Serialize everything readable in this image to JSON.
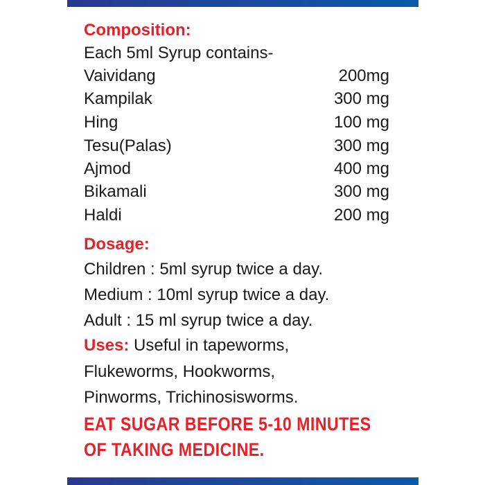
{
  "composition": {
    "heading": "Composition:",
    "intro": "Each 5ml Syrup contains-",
    "ingredients": [
      {
        "name": "Vaividang",
        "amount": "200mg"
      },
      {
        "name": "Kampilak",
        "amount": "300 mg"
      },
      {
        "name": "Hing",
        "amount": "100 mg"
      },
      {
        "name": "Tesu(Palas)",
        "amount": "300 mg"
      },
      {
        "name": "Ajmod",
        "amount": "400 mg"
      },
      {
        "name": "Bikamali",
        "amount": "300 mg"
      },
      {
        "name": "Haldi",
        "amount": "200 mg"
      }
    ]
  },
  "dosage": {
    "heading": "Dosage:",
    "lines": [
      "Children : 5ml syrup twice a day.",
      "Medium : 10ml syrup twice a day.",
      "Adult : 15 ml syrup twice a day."
    ]
  },
  "uses": {
    "heading": "Uses:",
    "lines": [
      "Useful in tapeworms,",
      "Flukeworms, Hookworms,",
      "Pinworms, Trichinosisworms."
    ]
  },
  "warning": {
    "lines": [
      "EAT SUGAR BEFORE 5-10 MINUTES",
      "OF TAKING MEDICINE."
    ]
  },
  "colors": {
    "heading": "#e0232b",
    "bar_start": "#2b3990",
    "bar_end": "#0a5aa8"
  }
}
